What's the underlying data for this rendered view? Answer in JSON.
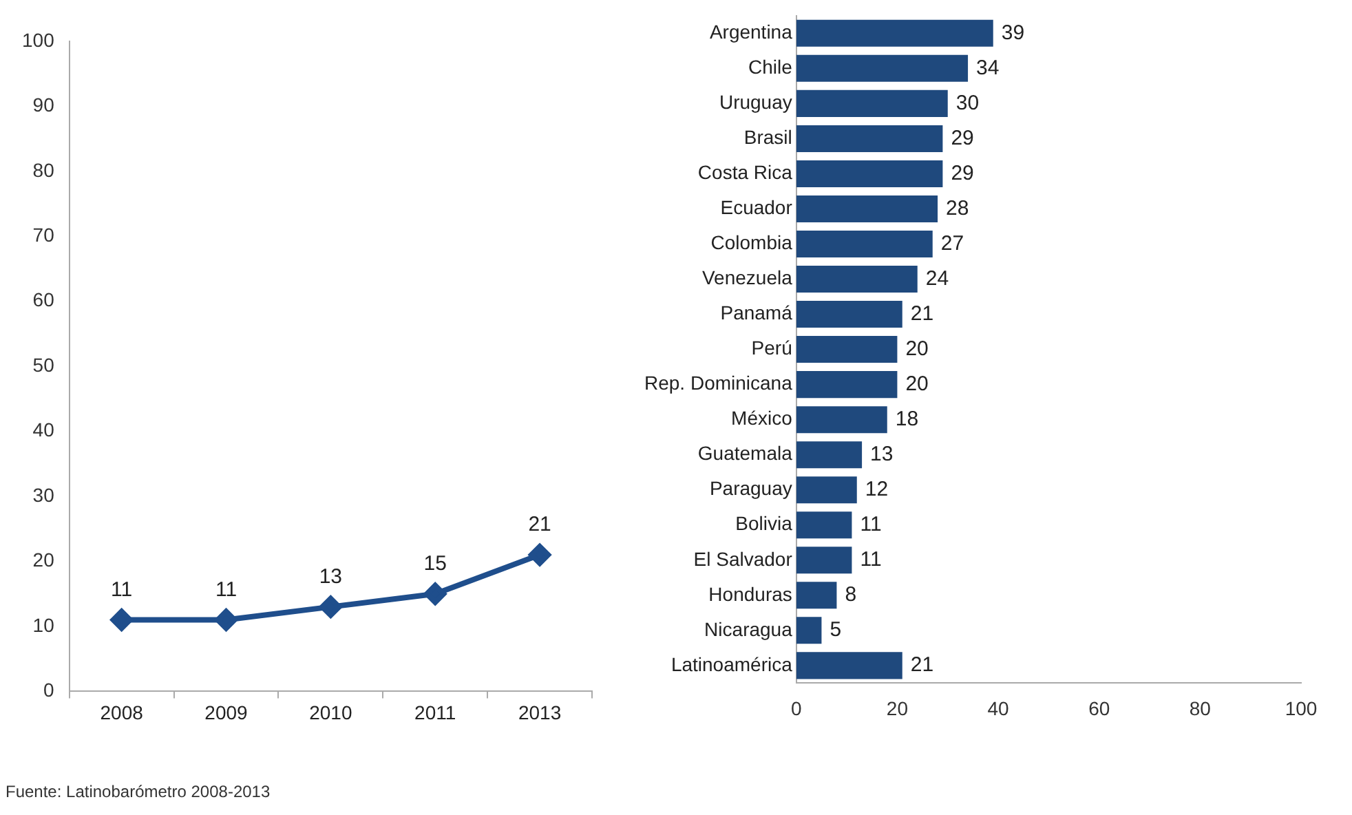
{
  "chart_data": [
    {
      "type": "line",
      "categories": [
        "2008",
        "2009",
        "2010",
        "2011",
        "2013"
      ],
      "series": [
        {
          "color": "#1f4e8c",
          "values": [
            11,
            11,
            13,
            15,
            21
          ]
        }
      ],
      "ylim": [
        0,
        100
      ],
      "yticks": [
        0,
        10,
        20,
        30,
        40,
        50,
        60,
        70,
        80,
        90,
        100
      ],
      "grid": false,
      "legend": false,
      "marker": "diamond",
      "line_style": "solid",
      "data_labels": true,
      "annotations": [
        "Fuente: Latinobarómetro 2008-2013"
      ]
    },
    {
      "type": "bar",
      "orientation": "horizontal",
      "categories": [
        "Argentina",
        "Chile",
        "Uruguay",
        "Brasil",
        "Costa Rica",
        "Ecuador",
        "Colombia",
        "Venezuela",
        "Panamá",
        "Perú",
        "Rep. Dominicana",
        "México",
        "Guatemala",
        "Paraguay",
        "Bolivia",
        "El Salvador",
        "Honduras",
        "Nicaragua",
        "Latinoamérica"
      ],
      "series": [
        {
          "color": "#1f497d",
          "values": [
            39,
            34,
            30,
            29,
            29,
            28,
            27,
            24,
            21,
            20,
            20,
            18,
            13,
            12,
            11,
            11,
            8,
            5,
            21
          ]
        }
      ],
      "xlim": [
        0,
        100
      ],
      "xticks": [
        0,
        20,
        40,
        60,
        80,
        100
      ],
      "grid": false,
      "legend": false,
      "data_labels": true
    }
  ]
}
